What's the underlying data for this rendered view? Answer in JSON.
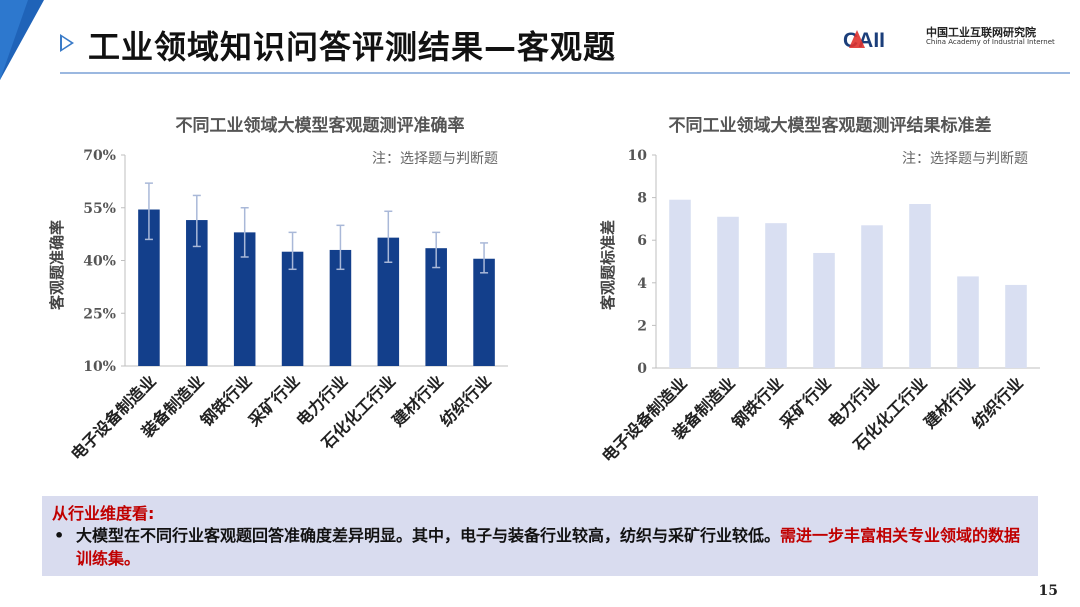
{
  "header": {
    "title": "工业领域知识问答评测结果—客观题",
    "logo_mark": "CAII",
    "logo_cn": "中国工业互联网研究院",
    "logo_en": "China Academy of Industrial Internet"
  },
  "chart_data": [
    {
      "type": "bar",
      "title": "不同工业领域大模型客观题测评准确率",
      "note": "注：选择题与判断题",
      "ylabel": "客观题准确率",
      "categories": [
        "电子设备制造业",
        "装备制造业",
        "钢铁行业",
        "采矿行业",
        "电力行业",
        "石化化工行业",
        "建材行业",
        "纺织行业"
      ],
      "values": [
        54.5,
        51.5,
        48.0,
        42.5,
        43.0,
        46.5,
        43.5,
        40.5
      ],
      "error_low": [
        46.0,
        44.0,
        41.0,
        37.5,
        37.5,
        39.5,
        38.0,
        36.5
      ],
      "error_high": [
        62.0,
        58.5,
        55.0,
        48.0,
        50.0,
        54.0,
        48.0,
        45.0
      ],
      "ylim": [
        10,
        70
      ],
      "yticks": [
        "10%",
        "25%",
        "40%",
        "55%",
        "70%"
      ],
      "ytick_values": [
        10,
        25,
        40,
        55,
        70
      ],
      "color": "#133f8b",
      "error_color": "#a9b8d8"
    },
    {
      "type": "bar",
      "title": "不同工业领域大模型客观题测评结果标准差",
      "note": "注：选择题与判断题",
      "ylabel": "客观题标准差",
      "categories": [
        "电子设备制造业",
        "装备制造业",
        "钢铁行业",
        "采矿行业",
        "电力行业",
        "石化化工行业",
        "建材行业",
        "纺织行业"
      ],
      "values": [
        7.9,
        7.1,
        6.8,
        5.4,
        6.7,
        7.7,
        4.3,
        3.9
      ],
      "ylim": [
        0,
        10
      ],
      "yticks": [
        "0",
        "2",
        "4",
        "6",
        "8",
        "10"
      ],
      "ytick_values": [
        0,
        2,
        4,
        6,
        8,
        10
      ],
      "color": "#d9dff2"
    }
  ],
  "callout": {
    "heading": "从行业维度看:",
    "bullet": "•",
    "text": "大模型在不同行业客观题回答准确度差异明显。其中，电子与装备行业较高，纺织与采矿行业较低。",
    "text_red": "需进一步丰富相关专业领域的数据训练集。"
  },
  "page_number": "15"
}
